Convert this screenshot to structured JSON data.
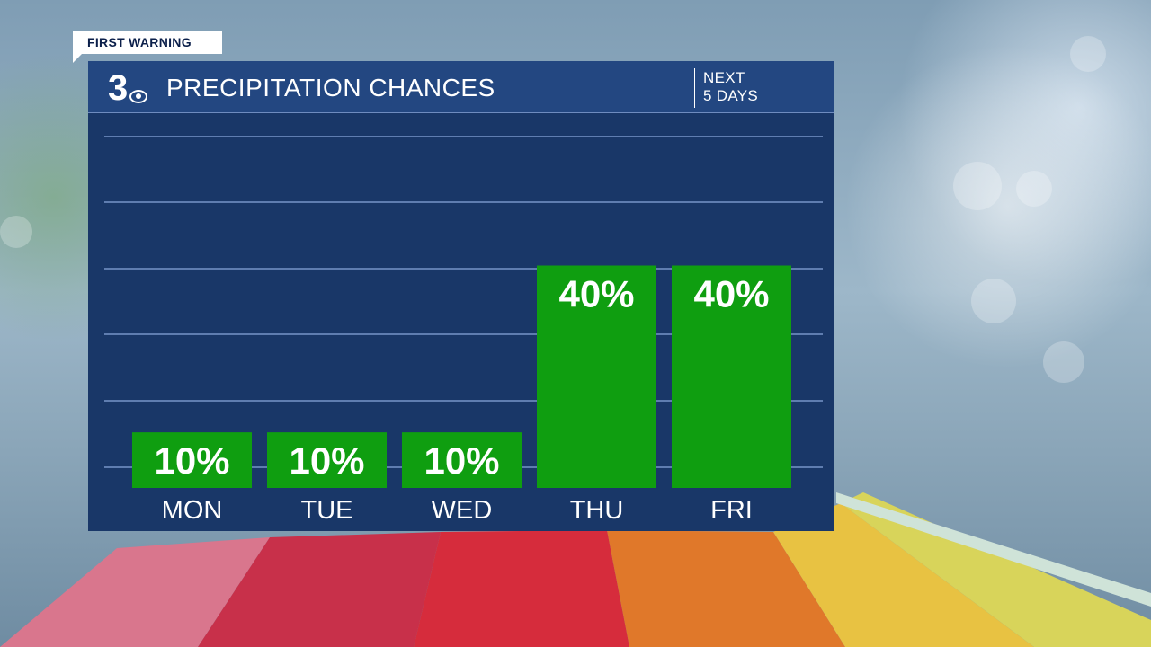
{
  "header": {
    "tag": "FIRST WARNING",
    "logo": "3",
    "title": "PRECIPITATION CHANCES",
    "period_line1": "NEXT",
    "period_line2": "5 DAYS"
  },
  "icons": {
    "logo": "channel-3-eye-logo"
  },
  "colors": {
    "panel": "#193768",
    "header": "#234781",
    "bar": "#0f9e10",
    "grid": "#5f7db0"
  },
  "chart_data": {
    "type": "bar",
    "categories": [
      "MON",
      "TUE",
      "WED",
      "THU",
      "FRI"
    ],
    "values": [
      10,
      10,
      10,
      40,
      40
    ],
    "value_labels": [
      "10%",
      "10%",
      "10%",
      "40%",
      "40%"
    ],
    "ylim": [
      0,
      100
    ],
    "grid": true,
    "title": "PRECIPITATION CHANCES"
  }
}
